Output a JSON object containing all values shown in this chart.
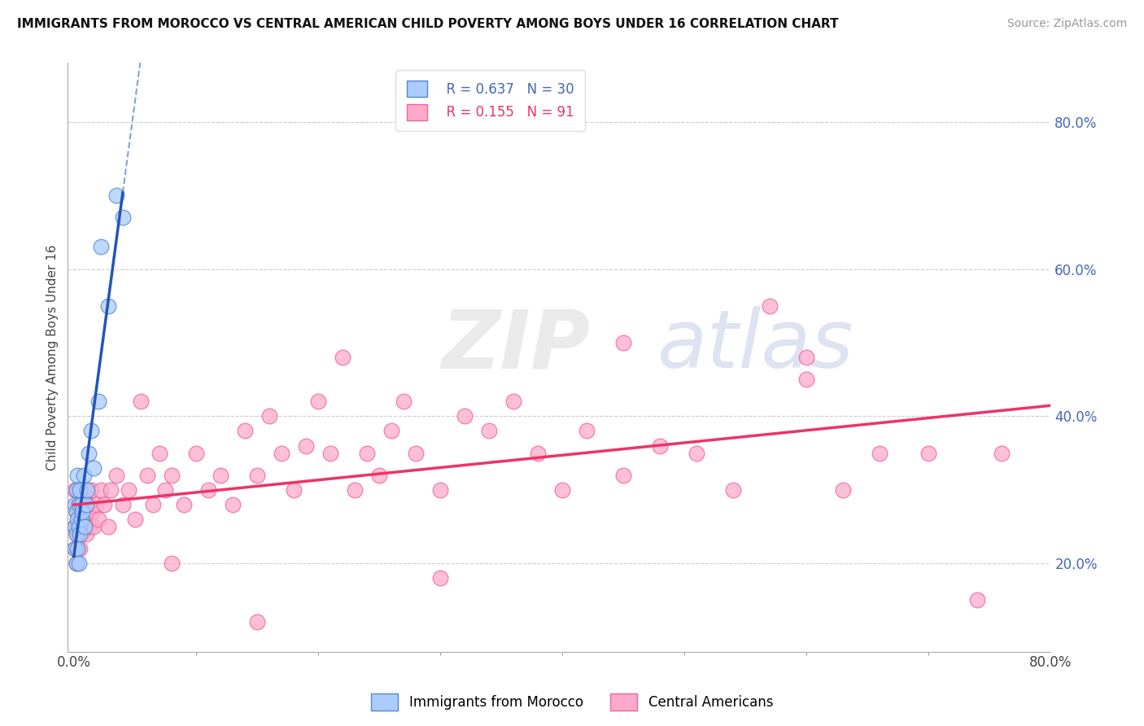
{
  "title": "IMMIGRANTS FROM MOROCCO VS CENTRAL AMERICAN CHILD POVERTY AMONG BOYS UNDER 16 CORRELATION CHART",
  "source": "Source: ZipAtlas.com",
  "ylabel": "Child Poverty Among Boys Under 16",
  "xlim": [
    -0.005,
    0.8
  ],
  "ylim": [
    0.08,
    0.88
  ],
  "morocco_color": "#aaccff",
  "morocco_edge": "#5588cc",
  "central_color": "#ffaacc",
  "central_edge": "#ee6699",
  "trendline_blue": "#2255bb",
  "trendline_pink": "#ee3366",
  "R_morocco": 0.637,
  "N_morocco": 30,
  "R_central": 0.155,
  "N_central": 91,
  "watermark_ZIP": "ZIP",
  "watermark_atlas": "atlas",
  "morocco_x": [
    0.001,
    0.001,
    0.001,
    0.002,
    0.002,
    0.002,
    0.002,
    0.003,
    0.003,
    0.003,
    0.004,
    0.004,
    0.004,
    0.005,
    0.005,
    0.006,
    0.006,
    0.007,
    0.008,
    0.009,
    0.01,
    0.011,
    0.012,
    0.014,
    0.016,
    0.02,
    0.022,
    0.028,
    0.035,
    0.04
  ],
  "morocco_y": [
    0.22,
    0.25,
    0.28,
    0.2,
    0.24,
    0.27,
    0.3,
    0.22,
    0.26,
    0.32,
    0.2,
    0.25,
    0.28,
    0.24,
    0.3,
    0.26,
    0.28,
    0.27,
    0.32,
    0.25,
    0.28,
    0.3,
    0.35,
    0.38,
    0.33,
    0.42,
    0.63,
    0.55,
    0.7,
    0.67
  ],
  "central_x": [
    0.001,
    0.001,
    0.001,
    0.002,
    0.002,
    0.002,
    0.003,
    0.003,
    0.003,
    0.003,
    0.004,
    0.004,
    0.004,
    0.005,
    0.005,
    0.005,
    0.006,
    0.006,
    0.007,
    0.007,
    0.008,
    0.008,
    0.009,
    0.009,
    0.01,
    0.01,
    0.011,
    0.012,
    0.013,
    0.014,
    0.015,
    0.016,
    0.018,
    0.02,
    0.022,
    0.025,
    0.028,
    0.03,
    0.035,
    0.04,
    0.045,
    0.05,
    0.055,
    0.06,
    0.065,
    0.07,
    0.075,
    0.08,
    0.09,
    0.1,
    0.11,
    0.12,
    0.13,
    0.14,
    0.15,
    0.16,
    0.17,
    0.18,
    0.19,
    0.2,
    0.21,
    0.22,
    0.23,
    0.24,
    0.25,
    0.26,
    0.27,
    0.28,
    0.3,
    0.32,
    0.34,
    0.36,
    0.38,
    0.4,
    0.42,
    0.45,
    0.48,
    0.51,
    0.54,
    0.57,
    0.6,
    0.63,
    0.66,
    0.7,
    0.74,
    0.76,
    0.6,
    0.45,
    0.3,
    0.15,
    0.08
  ],
  "central_y": [
    0.25,
    0.22,
    0.3,
    0.24,
    0.27,
    0.2,
    0.25,
    0.28,
    0.22,
    0.3,
    0.24,
    0.26,
    0.28,
    0.22,
    0.25,
    0.3,
    0.26,
    0.24,
    0.28,
    0.25,
    0.3,
    0.27,
    0.25,
    0.28,
    0.24,
    0.3,
    0.26,
    0.28,
    0.25,
    0.3,
    0.27,
    0.25,
    0.28,
    0.26,
    0.3,
    0.28,
    0.25,
    0.3,
    0.32,
    0.28,
    0.3,
    0.26,
    0.42,
    0.32,
    0.28,
    0.35,
    0.3,
    0.32,
    0.28,
    0.35,
    0.3,
    0.32,
    0.28,
    0.38,
    0.32,
    0.4,
    0.35,
    0.3,
    0.36,
    0.42,
    0.35,
    0.48,
    0.3,
    0.35,
    0.32,
    0.38,
    0.42,
    0.35,
    0.3,
    0.4,
    0.38,
    0.42,
    0.35,
    0.3,
    0.38,
    0.32,
    0.36,
    0.35,
    0.3,
    0.55,
    0.45,
    0.3,
    0.35,
    0.35,
    0.15,
    0.35,
    0.48,
    0.5,
    0.18,
    0.12,
    0.2
  ]
}
